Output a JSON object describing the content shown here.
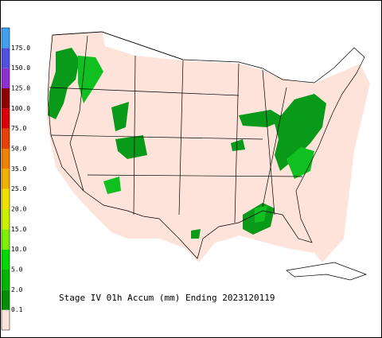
{
  "legend": {
    "labels": [
      "0.1",
      "2.0",
      "5.0",
      "10.0",
      "15.0",
      "20.0",
      "25.0",
      "35.0",
      "50.0",
      "75.0",
      "100.0",
      "125.0",
      "150.0",
      "175.0"
    ],
    "colors": [
      "#fde3da",
      "#008f00",
      "#00b400",
      "#00d800",
      "#7cf000",
      "#c8f000",
      "#f0e000",
      "#f0b000",
      "#f08000",
      "#e84000",
      "#d80000",
      "#900000",
      "#9030d0",
      "#5050e0",
      "#40a0f0"
    ]
  },
  "caption": "Stage IV 01h Accum (mm) Ending 2023120119"
}
